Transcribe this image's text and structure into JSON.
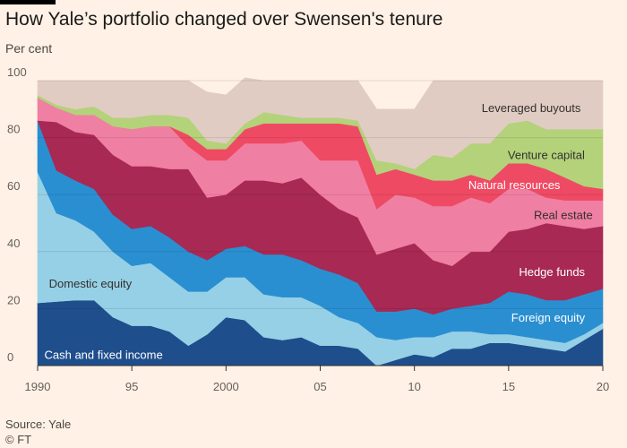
{
  "title": "How Yale’s portfolio changed over Swensen's tenure",
  "subtitle": "Per cent",
  "source": "Source: Yale",
  "copyright": "© FT",
  "chart_data": {
    "type": "area",
    "stacked": true,
    "title": "How Yale’s portfolio changed over Swensen's tenure",
    "ylabel": "Per cent",
    "x": [
      1990,
      1991,
      1992,
      1993,
      1994,
      1995,
      1996,
      1997,
      1998,
      1999,
      2000,
      2001,
      2002,
      2003,
      2004,
      2005,
      2006,
      2007,
      2008,
      2009,
      2010,
      2011,
      2012,
      2013,
      2014,
      2015,
      2016,
      2017,
      2018,
      2019,
      2020
    ],
    "xlim": [
      1990,
      2020
    ],
    "ylim": [
      0,
      100
    ],
    "x_tick_labels": [
      "1990",
      "95",
      "2000",
      "05",
      "10",
      "15",
      "20"
    ],
    "y_tick_labels": [
      "0",
      "20",
      "40",
      "60",
      "80",
      "100"
    ],
    "grid": "horizontal",
    "series": [
      {
        "name": "Cash and fixed income",
        "color": "#1f4e8c",
        "values": [
          22,
          22.5,
          23,
          23,
          17,
          14,
          14,
          12,
          7,
          11,
          17,
          16,
          10,
          9,
          10,
          7,
          7,
          6,
          0,
          2,
          4,
          3,
          6,
          6,
          8,
          8,
          7,
          6,
          5,
          9,
          13
        ]
      },
      {
        "name": "Foreign equity",
        "color": "#a9d6e8",
        "values": [
          0,
          0,
          0,
          0,
          0,
          0,
          0,
          0,
          0,
          0,
          0,
          0,
          0,
          0,
          0,
          0,
          0,
          0,
          0,
          0,
          0,
          0,
          0,
          0,
          0,
          0,
          0,
          0,
          0,
          0,
          0
        ]
      },
      {
        "name": "Domestic equity",
        "color": "#96d0e6",
        "values": [
          46,
          31,
          28,
          24,
          23,
          21,
          22,
          19,
          19,
          15,
          14,
          15,
          15,
          15,
          14,
          14,
          10,
          9,
          10,
          7,
          6,
          7,
          6,
          6,
          3,
          3,
          3,
          3,
          3,
          2,
          2
        ]
      },
      {
        "name": "Foreign equity",
        "color": "#2a8fd1",
        "values": [
          18,
          15,
          14,
          15,
          13,
          13,
          13,
          14,
          14,
          11,
          10,
          11,
          14,
          15,
          13,
          13,
          15,
          14,
          9,
          10,
          10,
          8,
          8,
          9,
          11,
          15,
          15,
          14,
          15,
          14,
          12
        ]
      },
      {
        "name": "Hedge funds",
        "color": "#a82954",
        "values": [
          0,
          17,
          17,
          19,
          21,
          22,
          21,
          24,
          29,
          22,
          19,
          23,
          26,
          25,
          29,
          26,
          23,
          23,
          20,
          22,
          23,
          19,
          15,
          19,
          18,
          21,
          23,
          27,
          26,
          23,
          22
        ]
      },
      {
        "name": "Real estate",
        "color": "#f07fa4",
        "values": [
          8,
          5,
          6,
          7,
          10,
          13,
          14,
          15,
          8,
          13,
          12,
          13,
          13,
          14,
          13,
          12,
          17,
          20,
          16,
          19,
          16,
          19,
          21,
          19,
          17,
          15,
          14,
          9,
          9,
          10,
          9
        ]
      },
      {
        "name": "Natural resources",
        "color": "#ef4a63",
        "values": [
          0,
          0,
          0,
          0,
          0,
          0,
          0,
          0,
          4,
          4,
          4,
          5,
          7,
          7,
          6,
          13,
          13,
          12,
          12,
          9,
          8,
          9,
          9,
          8,
          8,
          9,
          9,
          10,
          8,
          5,
          4
        ]
      },
      {
        "name": "Venture capital",
        "color": "#b3d27a",
        "values": [
          1,
          1,
          2,
          3,
          3,
          4,
          4,
          4,
          6,
          3,
          2,
          2,
          4,
          3,
          2,
          2,
          2,
          2,
          5,
          2,
          2,
          9,
          8,
          11,
          13,
          14,
          15,
          14,
          17,
          20,
          21
        ]
      },
      {
        "name": "Leveraged buyouts",
        "color": "#e1ccc3",
        "values": [
          5,
          8.5,
          10,
          9,
          13,
          13,
          12,
          12,
          13,
          17,
          17,
          16,
          11,
          12,
          13,
          13,
          13,
          14,
          18,
          19,
          21,
          26,
          27,
          22,
          22,
          15,
          14,
          17,
          17,
          17,
          17
        ]
      }
    ],
    "labels": [
      {
        "text": "Leveraged buyouts",
        "color": "#33302e",
        "x": 2016.2,
        "y": 90.5
      },
      {
        "text": "Venture capital",
        "color": "#33302e",
        "x": 2017,
        "y": 74
      },
      {
        "text": "Natural resources",
        "color": "#ffffff",
        "x": 2015.3,
        "y": 63.5
      },
      {
        "text": "Real estate",
        "color": "#33302e",
        "x": 2017.9,
        "y": 53
      },
      {
        "text": "Hedge funds",
        "color": "#ffffff",
        "x": 2017.3,
        "y": 33
      },
      {
        "text": "Foreign equity",
        "color": "#ffffff",
        "x": 2017.1,
        "y": 17
      },
      {
        "text": "Domestic equity",
        "color": "#33302e",
        "x": 1992.8,
        "y": 29
      },
      {
        "text": "Cash and fixed income",
        "color": "#ffffff",
        "x": 1993.5,
        "y": 4
      }
    ]
  }
}
